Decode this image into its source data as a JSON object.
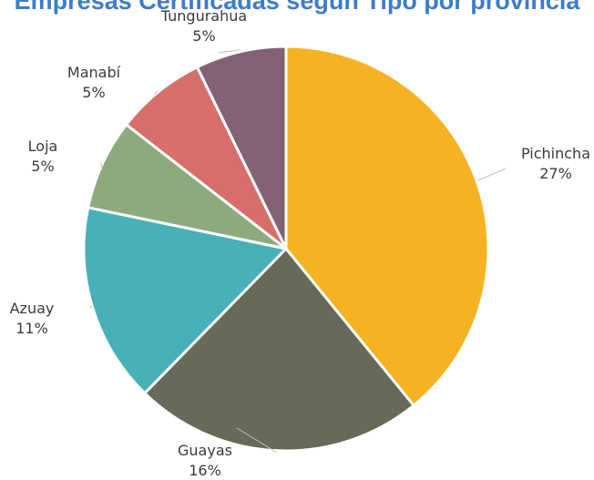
{
  "chart_data": {
    "type": "pie",
    "title": "Empresas Certificadas según Tipo por provincia",
    "start_angle_deg": 0,
    "direction": "clockwise",
    "slices": [
      {
        "label": "Pichincha",
        "value": 27,
        "value_label": "27%",
        "color": "#f5b223"
      },
      {
        "label": "Guayas",
        "value": 16,
        "value_label": "16%",
        "color": "#666a58"
      },
      {
        "label": "Azuay",
        "value": 11,
        "value_label": "11%",
        "color": "#46b1b6"
      },
      {
        "label": "Loja",
        "value": 5,
        "value_label": "5%",
        "color": "#8daa7c"
      },
      {
        "label": "Manabí",
        "value": 5,
        "value_label": "5%",
        "color": "#d76e6a"
      },
      {
        "label": "Tungurahua",
        "value": 5,
        "value_label": "5%",
        "color": "#836275"
      }
    ]
  }
}
